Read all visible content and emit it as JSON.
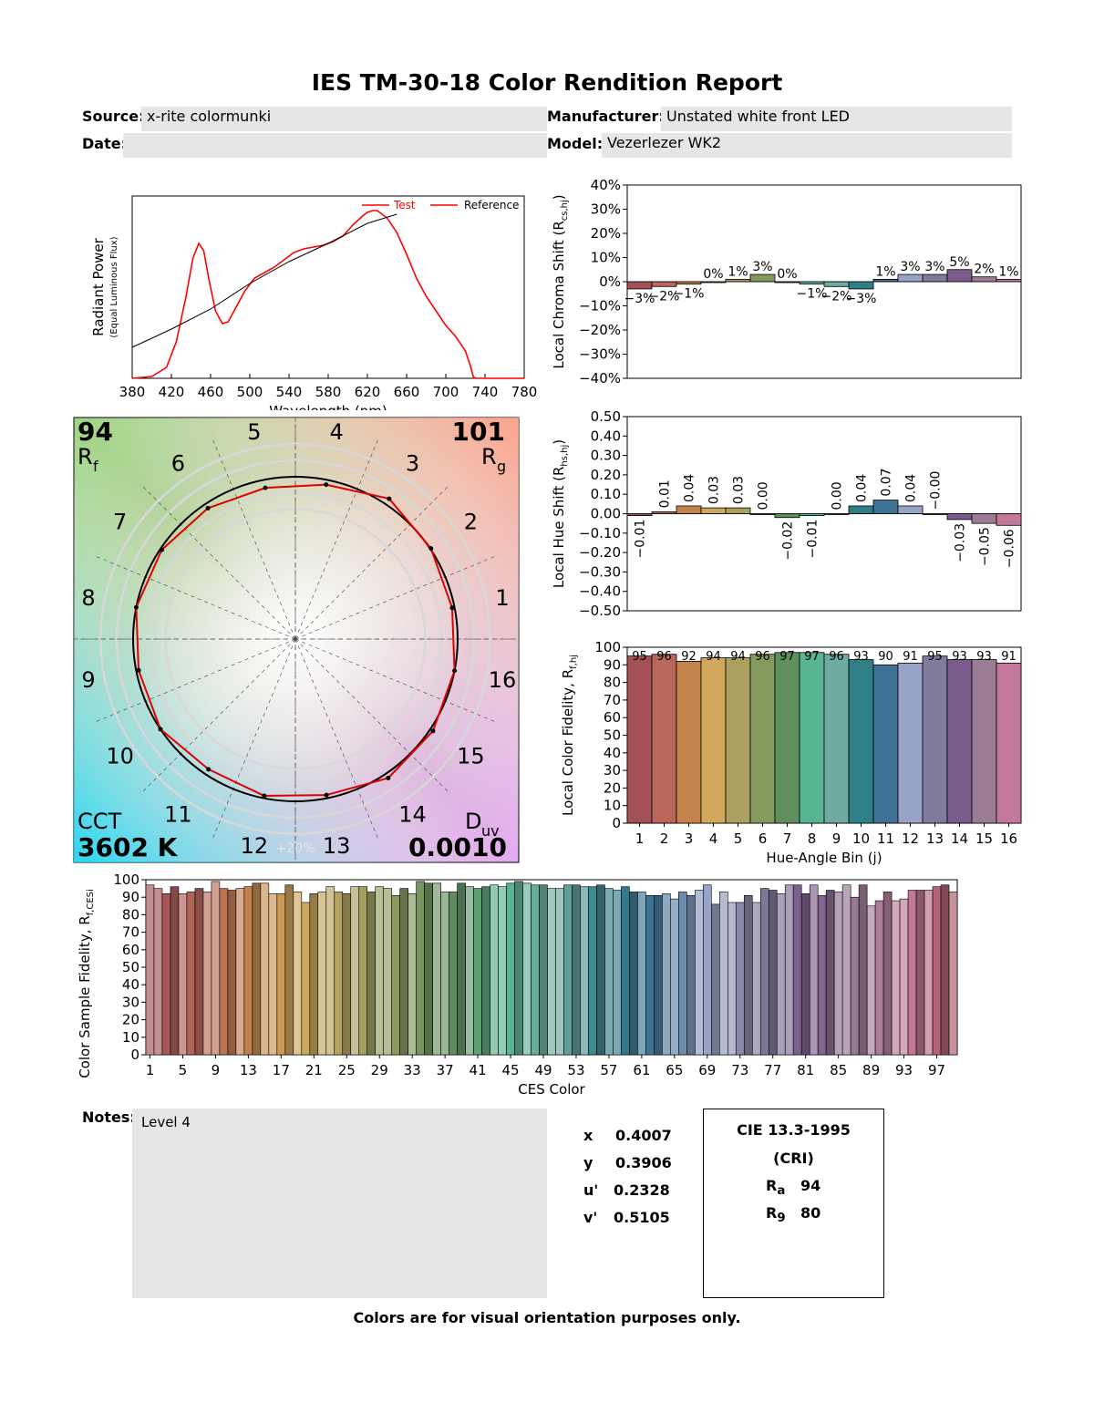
{
  "report": {
    "title": "IES TM-30-18 Color Rendition Report",
    "source_label": "Source:",
    "source": "x-rite colormunki",
    "manufacturer_label": "Manufacturer:",
    "manufacturer": "Unstated white front LED",
    "date_label": "Date:",
    "date": "",
    "model_label": "Model:",
    "model": "Vezerlezer WK2",
    "notes_label": "Notes:",
    "notes": "Level 4",
    "footer": "Colors are for visual orientation purposes only."
  },
  "coords": [
    {
      "label": "x",
      "value": "0.4007"
    },
    {
      "label": "y",
      "value": "0.3906"
    },
    {
      "label": "u'",
      "value": "0.2328"
    },
    {
      "label": "v'",
      "value": "0.5105"
    }
  ],
  "cri": {
    "title1": "CIE 13.3-1995",
    "title2": "(CRI)",
    "ra_label": "R",
    "ra_sub": "a",
    "ra": "94",
    "r9_label": "R",
    "r9_sub": "9",
    "r9": "80"
  },
  "vector": {
    "rf": "94",
    "rf_label": "R",
    "rf_sub": "f",
    "rg": "101",
    "rg_label": "R",
    "rg_sub": "g",
    "cct_label": "CCT",
    "cct": "3602 K",
    "duv_label": "D",
    "duv_sub": "uv",
    "duv": "0.0010",
    "ring_label": "+20%",
    "bins": [
      "1",
      "2",
      "3",
      "4",
      "5",
      "6",
      "7",
      "8",
      "9",
      "10",
      "11",
      "12",
      "13",
      "14",
      "15",
      "16"
    ],
    "test_radius": [
      0.985,
      1.005,
      1.04,
      0.97,
      0.95,
      0.97,
      0.99,
      1.0,
      0.985,
      1.0,
      0.965,
      0.985,
      0.98,
      1.03,
      1.02,
      1.0
    ],
    "ref_radius": 1.0
  },
  "hue_colors": [
    "#a35057",
    "#b8675a",
    "#c3834b",
    "#d1a85b",
    "#aba05f",
    "#84995e",
    "#5f8e5f",
    "#58b591",
    "#6faba1",
    "#2f7f87",
    "#3d7296",
    "#98a3c7",
    "#807b9a",
    "#7a5b8b",
    "#9a7d95",
    "#c5799a"
  ],
  "chart_data": [
    {
      "type": "line",
      "id": "spd",
      "xlabel": "Wavelength (nm)",
      "ylabel": "Radiant Power",
      "ylabel2": "(Equal Luminous Flux)",
      "xlim": [
        380,
        780
      ],
      "xticks": [
        380,
        420,
        460,
        500,
        540,
        580,
        620,
        660,
        700,
        740,
        780
      ],
      "legend": "top-right",
      "series": [
        {
          "name": "Test",
          "color": "#ff0000",
          "x": [
            380,
            400,
            415,
            425,
            435,
            442,
            448,
            453,
            458,
            465,
            472,
            478,
            485,
            495,
            505,
            515,
            525,
            535,
            545,
            555,
            565,
            575,
            585,
            595,
            605,
            615,
            620,
            625,
            630,
            640,
            650,
            660,
            670,
            680,
            690,
            700,
            710,
            720,
            725,
            728,
            730,
            780
          ],
          "y": [
            0.0,
            0.01,
            0.06,
            0.2,
            0.45,
            0.66,
            0.74,
            0.7,
            0.55,
            0.37,
            0.3,
            0.31,
            0.38,
            0.48,
            0.55,
            0.58,
            0.61,
            0.65,
            0.69,
            0.71,
            0.72,
            0.73,
            0.75,
            0.78,
            0.84,
            0.89,
            0.91,
            0.92,
            0.92,
            0.88,
            0.8,
            0.68,
            0.55,
            0.45,
            0.37,
            0.29,
            0.23,
            0.15,
            0.07,
            0.01,
            0.0,
            0.0
          ]
        },
        {
          "name": "Reference",
          "color": "#000000",
          "x": [
            380,
            420,
            460,
            500,
            540,
            580,
            620,
            650
          ],
          "y": [
            0.17,
            0.27,
            0.38,
            0.52,
            0.64,
            0.74,
            0.85,
            0.9
          ]
        }
      ]
    },
    {
      "type": "bar",
      "id": "chroma",
      "ylabel": "Local Chroma Shift (R",
      "ylabel_sub": "cs,hj",
      "ylim": [
        -40,
        40
      ],
      "yticks": [
        "40%",
        "30%",
        "20%",
        "10%",
        "0%",
        "−10%",
        "−20%",
        "−30%",
        "−40%"
      ],
      "values": [
        -3,
        -2,
        -1,
        0,
        1,
        3,
        0,
        -1,
        -2,
        -3,
        1,
        3,
        3,
        5,
        2,
        1
      ],
      "labels": [
        "−3%",
        "−2%",
        "−1%",
        "0%",
        "1%",
        "3%",
        "0%",
        "−1%",
        "−2%",
        "−3%",
        "1%",
        "3%",
        "3%",
        "5%",
        "2%",
        "1%"
      ]
    },
    {
      "type": "bar",
      "id": "hue",
      "ylabel": "Local Hue Shift (R",
      "ylabel_sub": "hs,hj",
      "ylim": [
        -0.5,
        0.5
      ],
      "yticks": [
        "0.50",
        "0.40",
        "0.30",
        "0.20",
        "0.10",
        "0.00",
        "−0.10",
        "−0.20",
        "−0.30",
        "−0.40",
        "−0.50"
      ],
      "values": [
        -0.01,
        0.01,
        0.04,
        0.03,
        0.03,
        0.0,
        -0.02,
        -0.01,
        0.0,
        0.04,
        0.07,
        0.04,
        -0.0,
        -0.03,
        -0.05,
        -0.06
      ],
      "labels": [
        "−0.01",
        "0.01",
        "0.04",
        "0.03",
        "0.03",
        "0.00",
        "−0.02",
        "−0.01",
        "0.00",
        "0.04",
        "0.07",
        "0.04",
        "−0.00",
        "−0.03",
        "−0.05",
        "−0.06"
      ]
    },
    {
      "type": "bar",
      "id": "fidelity",
      "xlabel": "Hue-Angle Bin (j)",
      "ylabel": "Local Color Fidelity, R",
      "ylabel_sub": "f,hj",
      "ylim": [
        0,
        100
      ],
      "yticks": [
        "100",
        "90",
        "80",
        "70",
        "60",
        "50",
        "40",
        "30",
        "20",
        "10",
        "0"
      ],
      "categories": [
        "1",
        "2",
        "3",
        "4",
        "5",
        "6",
        "7",
        "8",
        "9",
        "10",
        "11",
        "12",
        "13",
        "14",
        "15",
        "16"
      ],
      "values": [
        95,
        96,
        92,
        94,
        94,
        96,
        97,
        97,
        96,
        93,
        90,
        91,
        95,
        93,
        93,
        91
      ],
      "labels": [
        "95",
        "96",
        "92",
        "94",
        "94",
        "96",
        "97",
        "97",
        "96",
        "93",
        "90",
        "91",
        "95",
        "93",
        "93",
        "91"
      ]
    },
    {
      "type": "bar",
      "id": "ces",
      "xlabel": "CES Color",
      "ylabel": "Color Sample Fidelity, R",
      "ylabel_sub": "f,CESi",
      "ylim": [
        0,
        100
      ],
      "yticks": [
        "100",
        "90",
        "80",
        "70",
        "60",
        "50",
        "40",
        "30",
        "20",
        "10",
        "0"
      ],
      "xticks": [
        "1",
        "5",
        "9",
        "13",
        "17",
        "21",
        "25",
        "29",
        "33",
        "37",
        "41",
        "45",
        "49",
        "53",
        "57",
        "61",
        "65",
        "69",
        "73",
        "77",
        "81",
        "85",
        "89",
        "93",
        "97"
      ],
      "values": [
        97,
        95,
        92,
        96,
        92,
        93,
        95,
        93,
        99,
        95,
        94,
        95,
        96,
        98,
        98,
        92,
        92,
        97,
        93,
        87,
        92,
        93,
        96,
        93,
        92,
        96,
        96,
        93,
        96,
        95,
        91,
        95,
        92,
        99,
        98,
        98,
        93,
        93,
        98,
        96,
        95,
        96,
        97,
        96,
        98,
        99,
        98,
        97,
        97,
        95,
        95,
        97,
        97,
        96,
        96,
        97,
        95,
        94,
        96,
        93,
        93,
        91,
        91,
        92,
        89,
        93,
        91,
        94,
        97,
        86,
        93,
        87,
        87,
        91,
        87,
        95,
        94,
        92,
        97,
        97,
        92,
        97,
        91,
        94,
        93,
        97,
        90,
        97,
        85,
        88,
        93,
        88,
        89,
        94,
        94,
        94,
        96,
        97,
        93
      ]
    }
  ]
}
